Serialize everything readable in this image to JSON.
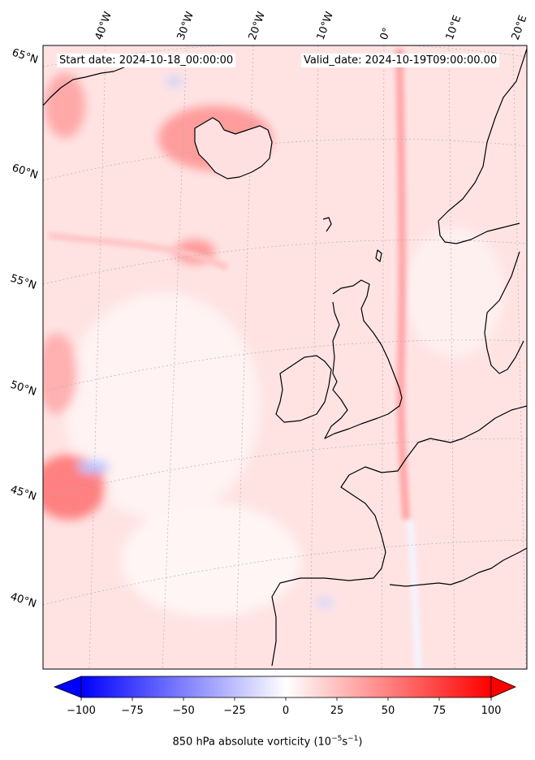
{
  "header": {
    "start_date": "Start date: 2024-10-18_00:00:00",
    "valid_date": "Valid_date: 2024-10-19T09:00:00.00"
  },
  "longitude_labels": [
    "40°W",
    "30°W",
    "20°W",
    "10°W",
    "0°",
    "10°E",
    "20°E"
  ],
  "latitude_labels": [
    "65°N",
    "60°N",
    "55°N",
    "50°N",
    "45°N",
    "40°N"
  ],
  "colorbar": {
    "ticks": [
      "−100",
      "−75",
      "−50",
      "−25",
      "0",
      "25",
      "50",
      "75",
      "100"
    ],
    "range": [
      -100,
      100
    ],
    "label_main": "850 hPa absolute vorticity (10",
    "label_sup1": "−5",
    "label_mid": "s",
    "label_sup2": "−1",
    "label_end": ")",
    "colormap": "bwr",
    "extend": "both"
  },
  "colors": {
    "background_field": "#ffe3e3",
    "coastline": "#000000",
    "gridline": "#b0b0b0",
    "min_color": "#0000ff",
    "mid_color": "#ffffff",
    "max_color": "#ff0000"
  }
}
